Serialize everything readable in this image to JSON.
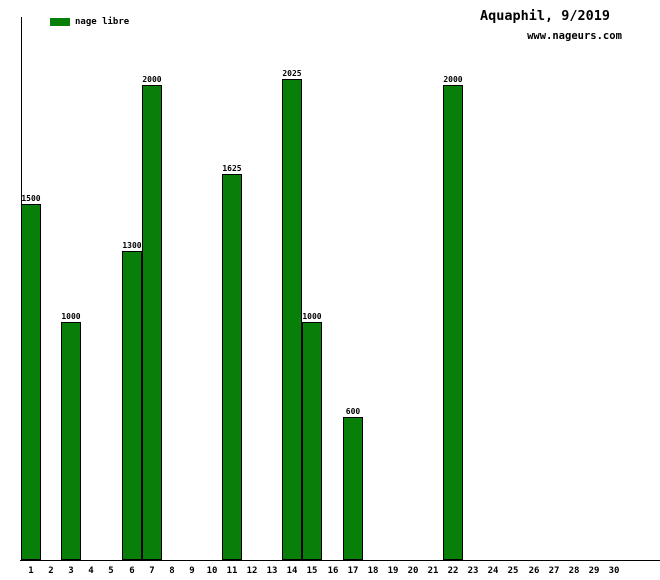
{
  "chart_data": {
    "type": "bar",
    "title": "Aquaphil, 9/2019",
    "subtitle": "www.nageurs.com",
    "xlabel": "",
    "ylabel": "",
    "categories": [
      1,
      2,
      3,
      4,
      5,
      6,
      7,
      8,
      9,
      10,
      11,
      12,
      13,
      14,
      15,
      16,
      17,
      18,
      19,
      20,
      21,
      22,
      23,
      24,
      25,
      26,
      27,
      28,
      29,
      30
    ],
    "series": [
      {
        "name": "nage libre",
        "color": "#087f08",
        "values": [
          1500,
          0,
          1000,
          0,
          0,
          1300,
          2000,
          0,
          0,
          0,
          1625,
          0,
          0,
          2025,
          1000,
          0,
          600,
          0,
          0,
          0,
          0,
          2000,
          0,
          0,
          0,
          0,
          0,
          0,
          0,
          0
        ]
      }
    ],
    "bar_labels_shown": true,
    "ylim": [
      0,
      2286
    ],
    "grid": false,
    "legend_position": "top-left",
    "axis_color": "#000000",
    "text_color": "#000000",
    "background_color": "#ffffff"
  },
  "legend": {
    "label": "nage libre",
    "color": "#087f08"
  },
  "header": {
    "title": "Aquaphil, 9/2019",
    "url": "www.nageurs.com"
  }
}
